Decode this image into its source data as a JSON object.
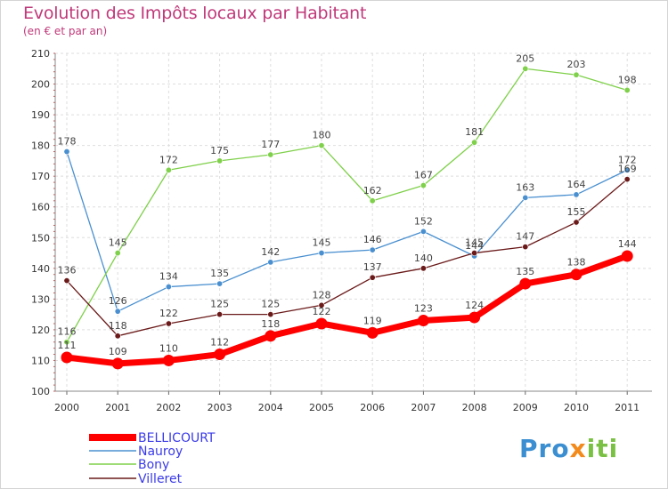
{
  "chart_data": {
    "type": "line",
    "title": "Evolution des Impôts locaux par Habitant",
    "subtitle": "(en € et par an)",
    "x": [
      "2000",
      "2001",
      "2002",
      "2003",
      "2004",
      "2005",
      "2006",
      "2007",
      "2008",
      "2009",
      "2010",
      "2011"
    ],
    "ylim": [
      100,
      210
    ],
    "yticks": [
      100,
      110,
      120,
      130,
      140,
      150,
      160,
      170,
      180,
      190,
      200,
      210
    ],
    "grid": true,
    "series": [
      {
        "name": "BELLICOURT",
        "color": "#ff0000",
        "values": [
          111,
          109,
          110,
          112,
          118,
          122,
          119,
          123,
          124,
          135,
          138,
          144
        ]
      },
      {
        "name": "Nauroy",
        "color": "#4a90d0",
        "values": [
          178,
          126,
          134,
          135,
          142,
          145,
          146,
          152,
          144,
          163,
          164,
          172
        ]
      },
      {
        "name": "Bony",
        "color": "#7fd04a",
        "values": [
          116,
          145,
          172,
          175,
          177,
          180,
          162,
          167,
          181,
          205,
          203,
          198
        ]
      },
      {
        "name": "Villeret",
        "color": "#6b1a1a",
        "values": [
          136,
          118,
          122,
          125,
          125,
          128,
          137,
          140,
          145,
          147,
          155,
          169
        ]
      }
    ]
  },
  "logo": {
    "text_a": "Pro",
    "text_b": "x",
    "text_c": "iti"
  }
}
